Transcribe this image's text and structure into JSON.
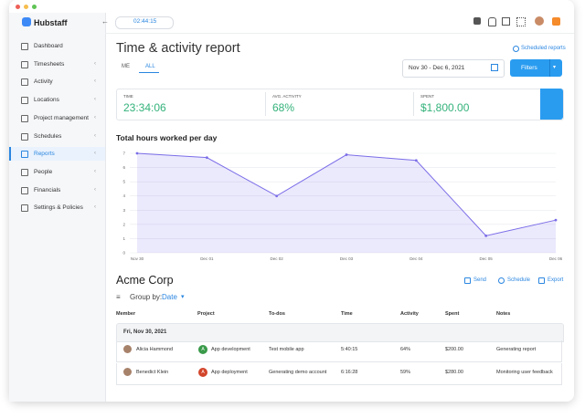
{
  "app": {
    "name": "Hubstaff",
    "timer": "02:44:15"
  },
  "sidebar": [
    "Dashboard",
    "Timesheets",
    "Activity",
    "Locations",
    "Project management",
    "Schedules",
    "Reports",
    "People",
    "Financials",
    "Settings & Policies"
  ],
  "header": {
    "title": "Time & activity report",
    "scheduled": "Scheduled reports",
    "tabs": [
      "ME",
      "ALL"
    ],
    "date_range": "Nov 30 - Dec 6, 2021",
    "filters": "Filters"
  },
  "stats": [
    {
      "label": "TIME",
      "value": "23:34:06"
    },
    {
      "label": "AVG. ACTIVITY",
      "value": "68%"
    },
    {
      "label": "SPENT",
      "value": "$1,800.00"
    }
  ],
  "chart": {
    "type": "line",
    "title": "Total hours worked per day",
    "categories": [
      "Nov 30",
      "Dec 01",
      "Dec 02",
      "Dec 03",
      "Dec 04",
      "Dec 05",
      "Dec 06"
    ],
    "values": [
      7.0,
      6.7,
      4.0,
      6.9,
      6.5,
      1.2,
      2.3
    ],
    "color": "#7b6ee8",
    "ylim": [
      0,
      7
    ],
    "yticks": [
      0,
      1,
      2,
      3,
      4,
      5,
      6,
      7
    ],
    "grid": true
  },
  "report": {
    "title": "Acme Corp",
    "actions": [
      "Send",
      "Schedule",
      "Export"
    ],
    "group_label": "Group by:",
    "group_value": "Date",
    "columns": [
      "Member",
      "Project",
      "To-dos",
      "Time",
      "Activity",
      "Spent",
      "Notes"
    ],
    "group": "Fri, Nov 30, 2021",
    "rows": [
      {
        "member": "Alicia Hammond",
        "project_initial": "A",
        "project": "App development",
        "todos": "Test mobile app",
        "time": "5:40:15",
        "activity": "64%",
        "spent": "$200.00",
        "notes": "Generating report"
      },
      {
        "member": "Benedict Klein",
        "project_initial": "A",
        "project": "App deployment",
        "todos": "Generating demo account",
        "time": "6:16:28",
        "activity": "59%",
        "spent": "$280.00",
        "notes": "Monitoring user feedback"
      }
    ]
  }
}
